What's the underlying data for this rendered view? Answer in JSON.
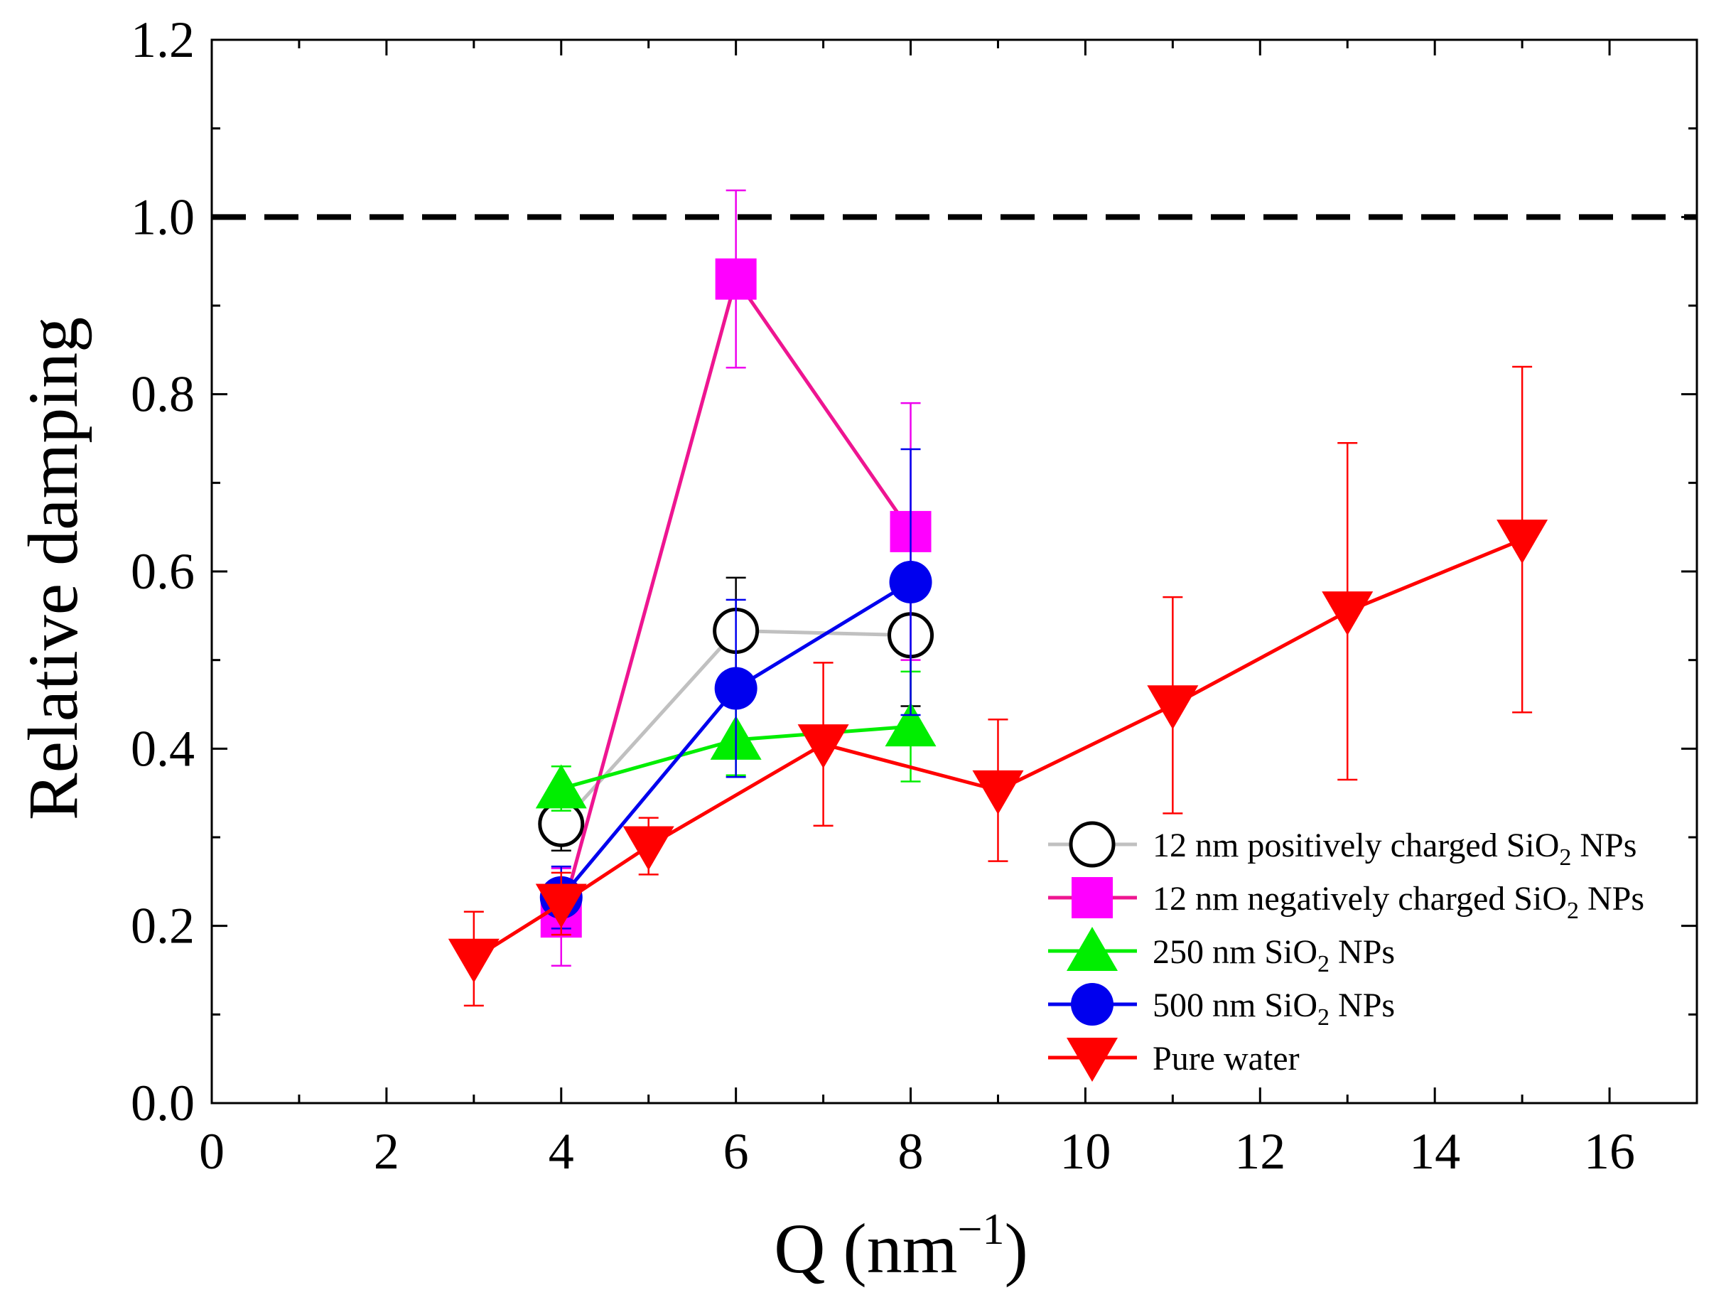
{
  "chart_data": {
    "type": "scatter",
    "title": "",
    "xlabel": "Q (nm",
    "xlabel_sup": "−1",
    "xlabel_close": ")",
    "ylabel": "Relative damping",
    "xlim": [
      0,
      17
    ],
    "ylim": [
      0,
      1.2
    ],
    "xticks": [
      0,
      2,
      4,
      6,
      8,
      10,
      12,
      14,
      16
    ],
    "xtick_labels": [
      "0",
      "2",
      "4",
      "6",
      "8",
      "10",
      "12",
      "14",
      "16"
    ],
    "yticks": [
      0.0,
      0.2,
      0.4,
      0.6,
      0.8,
      1.0,
      1.2
    ],
    "ytick_labels": [
      "0.0",
      "0.2",
      "0.4",
      "0.6",
      "0.8",
      "1.0",
      "1.2"
    ],
    "grid": false,
    "reference_line": {
      "y": 1.0,
      "style": "dashed",
      "color": "#000000"
    },
    "legend_position": "lower-right",
    "series": [
      {
        "name": "12 nm positively charged SiO2 NPs",
        "legend_parts": {
          "pre": "12 nm positively charged SiO",
          "sub": "2",
          "post": " NPs"
        },
        "marker": "circle-open",
        "marker_color": "#000000",
        "line_color": "#c0c0c0",
        "error_color": "#000000",
        "x": [
          4,
          6,
          8
        ],
        "y": [
          0.315,
          0.533,
          0.528
        ],
        "err": [
          0.03,
          0.06,
          0.08
        ]
      },
      {
        "name": "12 nm negatively charged SiO2 NPs",
        "legend_parts": {
          "pre": "12 nm negatively charged SiO",
          "sub": "2",
          "post": " NPs"
        },
        "marker": "square",
        "marker_color": "#ff00ff",
        "line_color": "#ee1591",
        "error_color": "#ee00ee",
        "x": [
          4,
          6,
          8
        ],
        "y": [
          0.21,
          0.93,
          0.645
        ],
        "err": [
          0.055,
          0.1,
          0.145
        ]
      },
      {
        "name": "250 nm SiO2 NPs",
        "legend_parts": {
          "pre": "250 nm SiO",
          "sub": "2",
          "post": " NPs"
        },
        "marker": "triangle-up",
        "marker_color": "#00ee00",
        "line_color": "#00ee00",
        "error_color": "#00ee00",
        "x": [
          4,
          6,
          8
        ],
        "y": [
          0.355,
          0.41,
          0.425
        ],
        "err": [
          0.025,
          0.04,
          0.062
        ]
      },
      {
        "name": "500 nm SiO2 NPs",
        "legend_parts": {
          "pre": "500 nm SiO",
          "sub": "2",
          "post": " NPs"
        },
        "marker": "circle",
        "marker_color": "#0000ee",
        "line_color": "#0000ee",
        "error_color": "#0000ee",
        "x": [
          4,
          6,
          8
        ],
        "y": [
          0.232,
          0.468,
          0.588
        ],
        "err": [
          0.035,
          0.1,
          0.15
        ]
      },
      {
        "name": "Pure water",
        "legend_parts": {
          "pre": "Pure water",
          "sub": "",
          "post": ""
        },
        "marker": "triangle-down",
        "marker_color": "#ff0000",
        "line_color": "#ff0000",
        "error_color": "#ff0000",
        "x": [
          3,
          4,
          5,
          7,
          9,
          11,
          13,
          15
        ],
        "y": [
          0.163,
          0.225,
          0.29,
          0.405,
          0.353,
          0.449,
          0.555,
          0.636
        ],
        "err": [
          0.053,
          0.035,
          0.032,
          0.092,
          0.08,
          0.122,
          0.19,
          0.195
        ]
      }
    ]
  }
}
